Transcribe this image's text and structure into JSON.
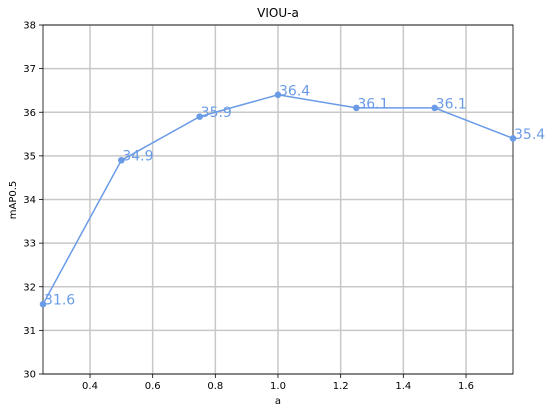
{
  "chart_data": {
    "type": "line",
    "title": "VIOU-a",
    "xlabel": "a",
    "ylabel": "mAP0.5",
    "xlim": [
      0.25,
      1.75
    ],
    "ylim": [
      30,
      38
    ],
    "xticks": [
      0.4,
      0.6,
      0.8,
      1.0,
      1.2,
      1.4,
      1.6
    ],
    "xtick_labels": [
      "0.4",
      "0.6",
      "0.8",
      "1.0",
      "1.2",
      "1.4",
      "1.6"
    ],
    "yticks": [
      30,
      31,
      32,
      33,
      34,
      35,
      36,
      37,
      38
    ],
    "ytick_labels": [
      "30",
      "31",
      "32",
      "33",
      "34",
      "35",
      "36",
      "37",
      "38"
    ],
    "grid": true,
    "series": [
      {
        "color": "#6a9be6",
        "x": [
          0.25,
          0.5,
          0.75,
          1.0,
          1.25,
          1.5,
          1.75
        ],
        "y": [
          31.6,
          34.9,
          35.9,
          36.4,
          36.1,
          36.1,
          35.4
        ],
        "labels": [
          "31.6",
          "34.9",
          "35.9",
          "36.4",
          "36.1",
          "36.1",
          "35.4"
        ]
      }
    ]
  }
}
